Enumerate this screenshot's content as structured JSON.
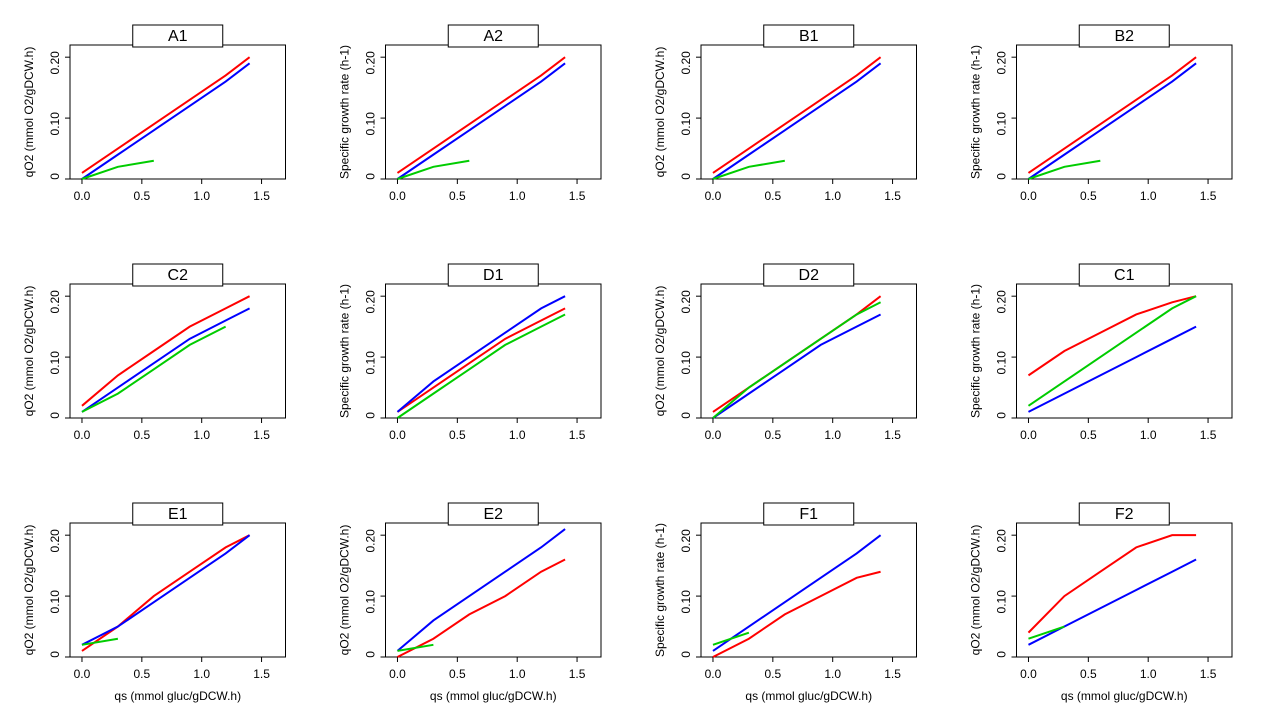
{
  "chart_data": [
    {
      "type": "line",
      "title": "A1",
      "ylabel": "qO2 (mmol O2/gDCW.h)",
      "x": [
        0.0,
        0.3,
        0.6,
        0.9,
        1.2,
        1.4
      ],
      "xlim": [
        -0.1,
        1.7
      ],
      "xticks": [
        {
          "value": 0,
          "label": "0.0"
        },
        0.5,
        {
          "value": 1,
          "label": "1.0"
        },
        1.5
      ],
      "ylim": [
        0,
        0.22
      ],
      "yticks": [
        0,
        {
          "value": 0.1,
          "label": "0.10"
        },
        {
          "value": 0.2,
          "label": "0.20"
        }
      ],
      "series": [
        {
          "color": "#ff0000",
          "values": [
            0.01,
            0.05,
            0.09,
            0.13,
            0.17,
            0.2
          ]
        },
        {
          "color": "#0000ff",
          "values": [
            0.0,
            0.04,
            0.08,
            0.12,
            0.16,
            0.19
          ]
        },
        {
          "color": "#00cc00",
          "values": [
            0.0,
            0.02,
            0.03,
            null,
            null,
            null
          ]
        }
      ]
    },
    {
      "type": "line",
      "title": "A2",
      "ylabel": "Specific growth rate (h-1)",
      "x": [
        0.0,
        0.3,
        0.6,
        0.9,
        1.2,
        1.4
      ],
      "xlim": [
        -0.1,
        1.7
      ],
      "xticks": [
        {
          "value": 0,
          "label": "0.0"
        },
        0.5,
        {
          "value": 1,
          "label": "1.0"
        },
        1.5
      ],
      "ylim": [
        0,
        0.22
      ],
      "yticks": [
        0,
        {
          "value": 0.1,
          "label": "0.10"
        },
        {
          "value": 0.2,
          "label": "0.20"
        }
      ],
      "series": [
        {
          "color": "#ff0000",
          "values": [
            0.01,
            0.05,
            0.09,
            0.13,
            0.17,
            0.2
          ]
        },
        {
          "color": "#0000ff",
          "values": [
            0.0,
            0.04,
            0.08,
            0.12,
            0.16,
            0.19
          ]
        },
        {
          "color": "#00cc00",
          "values": [
            0.0,
            0.02,
            0.03,
            null,
            null,
            null
          ]
        }
      ]
    },
    {
      "type": "line",
      "title": "B1",
      "ylabel": "qO2 (mmol O2/gDCW.h)",
      "x": [
        0.0,
        0.3,
        0.6,
        0.9,
        1.2,
        1.4
      ],
      "xlim": [
        -0.1,
        1.7
      ],
      "xticks": [
        {
          "value": 0,
          "label": "0.0"
        },
        0.5,
        {
          "value": 1,
          "label": "1.0"
        },
        1.5
      ],
      "ylim": [
        0,
        0.22
      ],
      "yticks": [
        0,
        {
          "value": 0.1,
          "label": "0.10"
        },
        {
          "value": 0.2,
          "label": "0.20"
        }
      ],
      "series": [
        {
          "color": "#ff0000",
          "values": [
            0.01,
            0.05,
            0.09,
            0.13,
            0.17,
            0.2
          ]
        },
        {
          "color": "#0000ff",
          "values": [
            0.0,
            0.04,
            0.08,
            0.12,
            0.16,
            0.19
          ]
        },
        {
          "color": "#00cc00",
          "values": [
            0.0,
            0.02,
            0.03,
            null,
            null,
            null
          ]
        }
      ]
    },
    {
      "type": "line",
      "title": "B2",
      "ylabel": "Specific growth rate (h-1)",
      "x": [
        0.0,
        0.3,
        0.6,
        0.9,
        1.2,
        1.4
      ],
      "xlim": [
        -0.1,
        1.7
      ],
      "xticks": [
        {
          "value": 0,
          "label": "0.0"
        },
        0.5,
        {
          "value": 1,
          "label": "1.0"
        },
        1.5
      ],
      "ylim": [
        0,
        0.22
      ],
      "yticks": [
        0,
        {
          "value": 0.1,
          "label": "0.10"
        },
        {
          "value": 0.2,
          "label": "0.20"
        }
      ],
      "series": [
        {
          "color": "#ff0000",
          "values": [
            0.01,
            0.05,
            0.09,
            0.13,
            0.17,
            0.2
          ]
        },
        {
          "color": "#0000ff",
          "values": [
            0.0,
            0.04,
            0.08,
            0.12,
            0.16,
            0.19
          ]
        },
        {
          "color": "#00cc00",
          "values": [
            0.0,
            0.02,
            0.03,
            null,
            null,
            null
          ]
        }
      ]
    },
    {
      "type": "line",
      "title": "C2",
      "ylabel": "qO2 (mmol O2/gDCW.h)",
      "x": [
        0.0,
        0.3,
        0.6,
        0.9,
        1.2,
        1.4
      ],
      "xlim": [
        -0.1,
        1.7
      ],
      "xticks": [
        {
          "value": 0,
          "label": "0.0"
        },
        0.5,
        {
          "value": 1,
          "label": "1.0"
        },
        1.5
      ],
      "ylim": [
        0,
        0.22
      ],
      "yticks": [
        0,
        {
          "value": 0.1,
          "label": "0.10"
        },
        {
          "value": 0.2,
          "label": "0.20"
        }
      ],
      "series": [
        {
          "color": "#ff0000",
          "values": [
            0.02,
            0.07,
            0.11,
            0.15,
            0.18,
            0.2
          ]
        },
        {
          "color": "#0000ff",
          "values": [
            0.01,
            0.05,
            0.09,
            0.13,
            0.16,
            0.18
          ]
        },
        {
          "color": "#00cc00",
          "values": [
            0.01,
            0.04,
            0.08,
            0.12,
            0.15,
            null
          ]
        }
      ]
    },
    {
      "type": "line",
      "title": "D1",
      "ylabel": "Specific growth rate (h-1)",
      "x": [
        0.0,
        0.3,
        0.6,
        0.9,
        1.2,
        1.4
      ],
      "xlim": [
        -0.1,
        1.7
      ],
      "xticks": [
        {
          "value": 0,
          "label": "0.0"
        },
        0.5,
        {
          "value": 1,
          "label": "1.0"
        },
        1.5
      ],
      "ylim": [
        0,
        0.22
      ],
      "yticks": [
        0,
        {
          "value": 0.1,
          "label": "0.10"
        },
        {
          "value": 0.2,
          "label": "0.20"
        }
      ],
      "series": [
        {
          "color": "#ff0000",
          "values": [
            0.01,
            0.05,
            0.09,
            0.13,
            0.16,
            0.18
          ]
        },
        {
          "color": "#0000ff",
          "values": [
            0.01,
            0.06,
            0.1,
            0.14,
            0.18,
            0.2
          ]
        },
        {
          "color": "#00cc00",
          "values": [
            0.0,
            0.04,
            0.08,
            0.12,
            0.15,
            0.17
          ]
        }
      ]
    },
    {
      "type": "line",
      "title": "D2",
      "ylabel": "qO2 (mmol O2/gDCW.h)",
      "x": [
        0.0,
        0.3,
        0.6,
        0.9,
        1.2,
        1.4
      ],
      "xlim": [
        -0.1,
        1.7
      ],
      "xticks": [
        {
          "value": 0,
          "label": "0.0"
        },
        0.5,
        {
          "value": 1,
          "label": "1.0"
        },
        1.5
      ],
      "ylim": [
        0,
        0.22
      ],
      "yticks": [
        0,
        {
          "value": 0.1,
          "label": "0.10"
        },
        {
          "value": 0.2,
          "label": "0.20"
        }
      ],
      "series": [
        {
          "color": "#ff0000",
          "values": [
            0.01,
            0.05,
            0.09,
            0.13,
            0.17,
            0.2
          ]
        },
        {
          "color": "#0000ff",
          "values": [
            0.0,
            0.04,
            0.08,
            0.12,
            0.15,
            0.17
          ]
        },
        {
          "color": "#00cc00",
          "values": [
            0.0,
            0.05,
            0.09,
            0.13,
            0.17,
            0.19
          ]
        }
      ]
    },
    {
      "type": "line",
      "title": "C1",
      "ylabel": "Specific growth rate (h-1)",
      "x": [
        0.0,
        0.3,
        0.6,
        0.9,
        1.2,
        1.4
      ],
      "xlim": [
        -0.1,
        1.7
      ],
      "xticks": [
        {
          "value": 0,
          "label": "0.0"
        },
        0.5,
        {
          "value": 1,
          "label": "1.0"
        },
        1.5
      ],
      "ylim": [
        0,
        0.22
      ],
      "yticks": [
        0,
        {
          "value": 0.1,
          "label": "0.10"
        },
        {
          "value": 0.2,
          "label": "0.20"
        }
      ],
      "series": [
        {
          "color": "#ff0000",
          "values": [
            0.07,
            0.11,
            0.14,
            0.17,
            0.19,
            0.2
          ]
        },
        {
          "color": "#0000ff",
          "values": [
            0.01,
            0.04,
            0.07,
            0.1,
            0.13,
            0.15
          ]
        },
        {
          "color": "#00cc00",
          "values": [
            0.02,
            0.06,
            0.1,
            0.14,
            0.18,
            0.2
          ]
        }
      ]
    },
    {
      "type": "line",
      "title": "E1",
      "ylabel": "qO2 (mmol O2/gDCW.h)",
      "xlabel": "qs (mmol gluc/gDCW.h)",
      "x": [
        0.0,
        0.3,
        0.6,
        0.9,
        1.2,
        1.4
      ],
      "xlim": [
        -0.1,
        1.7
      ],
      "xticks": [
        {
          "value": 0,
          "label": "0.0"
        },
        0.5,
        {
          "value": 1,
          "label": "1.0"
        },
        1.5
      ],
      "ylim": [
        0,
        0.22
      ],
      "yticks": [
        0,
        {
          "value": 0.1,
          "label": "0.10"
        },
        {
          "value": 0.2,
          "label": "0.20"
        }
      ],
      "series": [
        {
          "color": "#ff0000",
          "values": [
            0.01,
            0.05,
            0.1,
            0.14,
            0.18,
            0.2
          ]
        },
        {
          "color": "#0000ff",
          "values": [
            0.02,
            0.05,
            0.09,
            0.13,
            0.17,
            0.2
          ]
        },
        {
          "color": "#00cc00",
          "values": [
            0.02,
            0.03,
            null,
            null,
            null,
            null
          ]
        }
      ]
    },
    {
      "type": "line",
      "title": "E2",
      "ylabel": "qO2 (mmol O2/gDCW.h)",
      "xlabel": "qs (mmol gluc/gDCW.h)",
      "x": [
        0.0,
        0.3,
        0.6,
        0.9,
        1.2,
        1.4
      ],
      "xlim": [
        -0.1,
        1.7
      ],
      "xticks": [
        {
          "value": 0,
          "label": "0.0"
        },
        0.5,
        {
          "value": 1,
          "label": "1.0"
        },
        1.5
      ],
      "ylim": [
        0,
        0.22
      ],
      "yticks": [
        0,
        {
          "value": 0.1,
          "label": "0.10"
        },
        {
          "value": 0.2,
          "label": "0.20"
        }
      ],
      "series": [
        {
          "color": "#ff0000",
          "values": [
            0.0,
            0.03,
            0.07,
            0.1,
            0.14,
            0.16
          ]
        },
        {
          "color": "#0000ff",
          "values": [
            0.01,
            0.06,
            0.1,
            0.14,
            0.18,
            0.21
          ]
        },
        {
          "color": "#00cc00",
          "values": [
            0.01,
            0.02,
            null,
            null,
            null,
            null
          ]
        }
      ]
    },
    {
      "type": "line",
      "title": "F1",
      "ylabel": "Specific growth rate (h-1)",
      "xlabel": "qs (mmol gluc/gDCW.h)",
      "x": [
        0.0,
        0.3,
        0.6,
        0.9,
        1.2,
        1.4
      ],
      "xlim": [
        -0.1,
        1.7
      ],
      "xticks": [
        {
          "value": 0,
          "label": "0.0"
        },
        0.5,
        {
          "value": 1,
          "label": "1.0"
        },
        1.5
      ],
      "ylim": [
        0,
        0.22
      ],
      "yticks": [
        0,
        {
          "value": 0.1,
          "label": "0.10"
        },
        {
          "value": 0.2,
          "label": "0.20"
        }
      ],
      "series": [
        {
          "color": "#ff0000",
          "values": [
            0.0,
            0.03,
            0.07,
            0.1,
            0.13,
            0.14
          ]
        },
        {
          "color": "#0000ff",
          "values": [
            0.01,
            0.05,
            0.09,
            0.13,
            0.17,
            0.2
          ]
        },
        {
          "color": "#00cc00",
          "values": [
            0.02,
            0.04,
            null,
            null,
            null,
            null
          ]
        }
      ]
    },
    {
      "type": "line",
      "title": "F2",
      "ylabel": "qO2 (mmol O2/gDCW.h)",
      "xlabel": "qs (mmol gluc/gDCW.h)",
      "x": [
        0.0,
        0.3,
        0.6,
        0.9,
        1.2,
        1.4
      ],
      "xlim": [
        -0.1,
        1.7
      ],
      "xticks": [
        {
          "value": 0,
          "label": "0.0"
        },
        0.5,
        {
          "value": 1,
          "label": "1.0"
        },
        1.5
      ],
      "ylim": [
        0,
        0.22
      ],
      "yticks": [
        0,
        {
          "value": 0.1,
          "label": "0.10"
        },
        {
          "value": 0.2,
          "label": "0.20"
        }
      ],
      "series": [
        {
          "color": "#ff0000",
          "values": [
            0.04,
            0.1,
            0.14,
            0.18,
            0.2,
            0.2
          ]
        },
        {
          "color": "#0000ff",
          "values": [
            0.02,
            0.05,
            0.08,
            0.11,
            0.14,
            0.16
          ]
        },
        {
          "color": "#00cc00",
          "values": [
            0.03,
            0.05,
            null,
            null,
            null,
            null
          ]
        }
      ]
    }
  ]
}
